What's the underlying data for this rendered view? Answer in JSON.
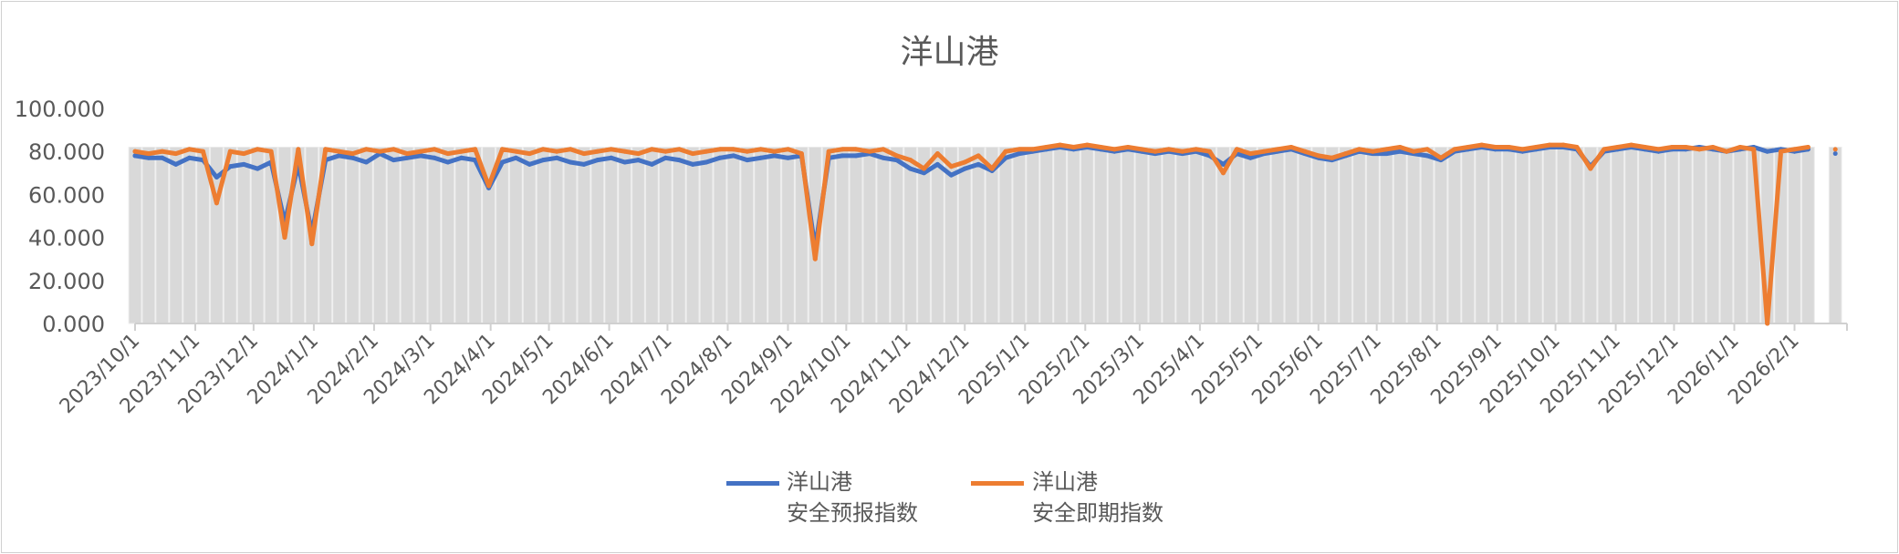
{
  "chart_data": {
    "type": "line",
    "title": "洋山港",
    "xlabel": "",
    "ylabel": "",
    "ylim": [
      0,
      100
    ],
    "yticks": [
      "0.000",
      "20.000",
      "40.000",
      "60.000",
      "80.000",
      "100.000"
    ],
    "xlim": [
      "2023-10-01",
      "2026-02-28"
    ],
    "xticks": [
      "2023/10/1",
      "2023/11/1",
      "2023/12/1",
      "2024/1/1",
      "2024/2/1",
      "2024/3/1",
      "2024/4/1",
      "2024/5/1",
      "2024/6/1",
      "2024/7/1",
      "2024/8/1",
      "2024/9/1",
      "2024/10/1",
      "2024/11/1",
      "2024/12/1",
      "2025/1/1",
      "2025/2/1",
      "2025/3/1",
      "2025/4/1",
      "2025/5/1",
      "2025/6/1",
      "2025/7/1",
      "2025/8/1",
      "2025/9/1",
      "2025/10/1",
      "2025/11/1",
      "2025/12/1",
      "2026/1/1",
      "2026/2/1"
    ],
    "grid": false,
    "legend_position": "bottom",
    "x": [
      "2023-10-01",
      "2023-10-08",
      "2023-10-15",
      "2023-10-22",
      "2023-10-29",
      "2023-11-05",
      "2023-11-12",
      "2023-11-19",
      "2023-11-26",
      "2023-12-03",
      "2023-12-10",
      "2023-12-17",
      "2023-12-24",
      "2023-12-31",
      "2024-01-07",
      "2024-01-14",
      "2024-01-21",
      "2024-01-28",
      "2024-02-04",
      "2024-02-11",
      "2024-02-18",
      "2024-02-25",
      "2024-03-03",
      "2024-03-10",
      "2024-03-17",
      "2024-03-24",
      "2024-03-31",
      "2024-04-07",
      "2024-04-14",
      "2024-04-21",
      "2024-04-28",
      "2024-05-05",
      "2024-05-12",
      "2024-05-19",
      "2024-05-26",
      "2024-06-02",
      "2024-06-09",
      "2024-06-16",
      "2024-06-23",
      "2024-06-30",
      "2024-07-07",
      "2024-07-14",
      "2024-07-21",
      "2024-07-28",
      "2024-08-04",
      "2024-08-11",
      "2024-08-18",
      "2024-08-25",
      "2024-09-01",
      "2024-09-08",
      "2024-09-15",
      "2024-09-22",
      "2024-09-29",
      "2024-10-06",
      "2024-10-13",
      "2024-10-20",
      "2024-10-27",
      "2024-11-03",
      "2024-11-10",
      "2024-11-17",
      "2024-11-24",
      "2024-12-01",
      "2024-12-08",
      "2024-12-15",
      "2024-12-22",
      "2024-12-29",
      "2025-01-05",
      "2025-01-12",
      "2025-01-19",
      "2025-01-26",
      "2025-02-02",
      "2025-02-09",
      "2025-02-16",
      "2025-02-23",
      "2025-03-02",
      "2025-03-09",
      "2025-03-16",
      "2025-03-23",
      "2025-03-30",
      "2025-04-06",
      "2025-04-13",
      "2025-04-20",
      "2025-04-27",
      "2025-05-04",
      "2025-05-11",
      "2025-05-18",
      "2025-05-25",
      "2025-06-01",
      "2025-06-08",
      "2025-06-15",
      "2025-06-22",
      "2025-06-29",
      "2025-07-06",
      "2025-07-13",
      "2025-07-20",
      "2025-07-27",
      "2025-08-03",
      "2025-08-10",
      "2025-08-17",
      "2025-08-24",
      "2025-08-31",
      "2025-09-07",
      "2025-09-14",
      "2025-09-21",
      "2025-09-28",
      "2025-10-05",
      "2025-10-12",
      "2025-10-19",
      "2025-10-26",
      "2025-11-02",
      "2025-11-09",
      "2025-11-16",
      "2025-11-23",
      "2025-11-30",
      "2025-12-07",
      "2025-12-14",
      "2025-12-21",
      "2025-12-28",
      "2026-01-04",
      "2026-01-11",
      "2026-01-18",
      "2026-01-25",
      "2026-02-01",
      "2026-02-08",
      "2026-02-15",
      "2026-02-22"
    ],
    "series": [
      {
        "name": "洋山港\n安全预报指数",
        "color": "#4472c4",
        "values": [
          78,
          77,
          77,
          74,
          77,
          76,
          68,
          73,
          74,
          72,
          75,
          47,
          74,
          42,
          76,
          78,
          77,
          75,
          79,
          76,
          77,
          78,
          77,
          75,
          77,
          76,
          63,
          75,
          77,
          74,
          76,
          77,
          75,
          74,
          76,
          77,
          75,
          76,
          74,
          77,
          76,
          74,
          75,
          77,
          78,
          76,
          77,
          78,
          77,
          78,
          35,
          77,
          78,
          78,
          79,
          77,
          76,
          72,
          70,
          74,
          69,
          72,
          74,
          71,
          77,
          79,
          80,
          81,
          82,
          81,
          82,
          81,
          80,
          81,
          80,
          79,
          80,
          79,
          80,
          78,
          74,
          79,
          77,
          79,
          80,
          81,
          79,
          77,
          76,
          78,
          80,
          79,
          79,
          80,
          79,
          78,
          76,
          80,
          81,
          82,
          81,
          81,
          80,
          81,
          82,
          82,
          81,
          73,
          80,
          81,
          82,
          81,
          80,
          81,
          81,
          82,
          81,
          80,
          81,
          82,
          80,
          81,
          80,
          81,
          null,
          79
        ]
      },
      {
        "name": "洋山港\n安全即期指数",
        "color": "#ed7d31",
        "values": [
          80,
          79,
          80,
          79,
          81,
          80,
          56,
          80,
          79,
          81,
          80,
          40,
          81,
          37,
          81,
          80,
          79,
          81,
          80,
          81,
          79,
          80,
          81,
          79,
          80,
          81,
          64,
          81,
          80,
          79,
          81,
          80,
          81,
          79,
          80,
          81,
          80,
          79,
          81,
          80,
          81,
          79,
          80,
          81,
          81,
          80,
          81,
          80,
          81,
          79,
          30,
          80,
          81,
          81,
          80,
          81,
          78,
          76,
          72,
          79,
          73,
          75,
          78,
          72,
          80,
          81,
          81,
          82,
          83,
          82,
          83,
          82,
          81,
          82,
          81,
          80,
          81,
          80,
          81,
          80,
          70,
          81,
          79,
          80,
          81,
          82,
          80,
          78,
          77,
          79,
          81,
          80,
          81,
          82,
          80,
          81,
          77,
          81,
          82,
          83,
          82,
          82,
          81,
          82,
          83,
          83,
          82,
          72,
          81,
          82,
          83,
          82,
          81,
          82,
          82,
          81,
          82,
          80,
          82,
          81,
          0,
          80,
          81,
          82,
          null,
          81
        ]
      }
    ]
  }
}
